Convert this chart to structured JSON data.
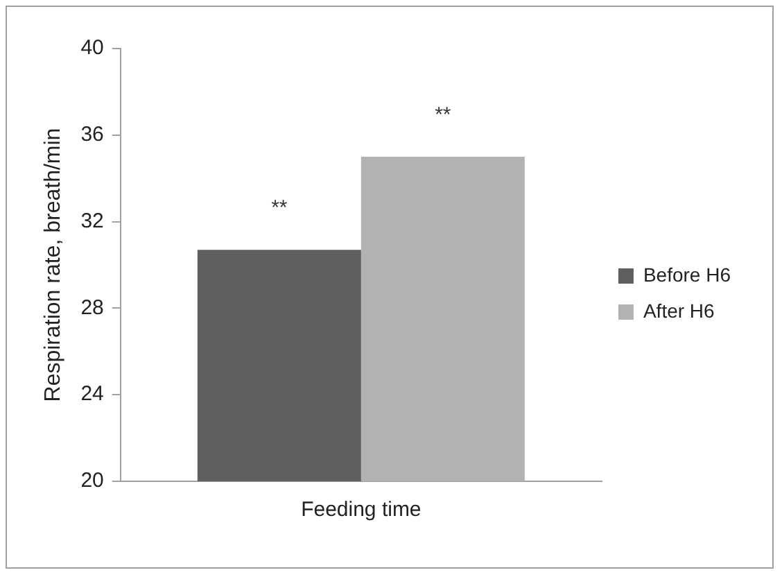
{
  "chart_data": {
    "type": "bar",
    "xlabel": null,
    "ylabel": "Respiration rate, breath/min",
    "categories": [
      "Feeding time"
    ],
    "series": [
      {
        "name": "Before H6",
        "color": "#5f5f5f",
        "values": [
          30.7
        ],
        "value_labels": [
          "**"
        ]
      },
      {
        "name": "After H6",
        "color": "#b2b2b2",
        "values": [
          35.0
        ],
        "value_labels": [
          "**"
        ]
      }
    ],
    "ylim": [
      20,
      40
    ],
    "yticks": [
      20,
      24,
      28,
      32,
      36,
      40
    ],
    "grid": false,
    "legend": "right"
  }
}
